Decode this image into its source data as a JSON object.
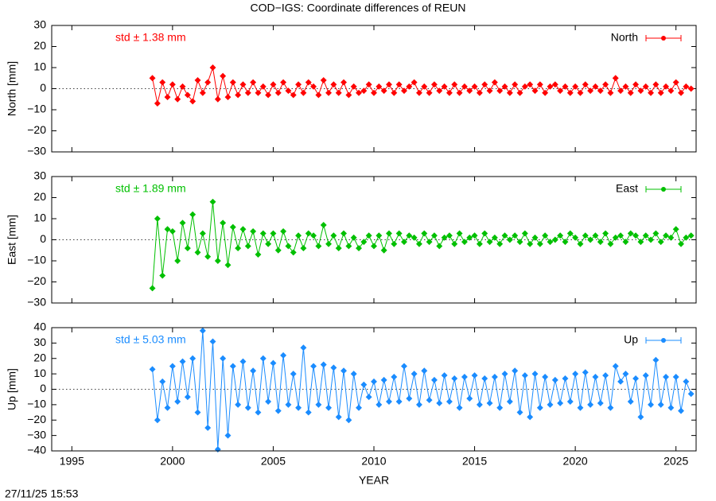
{
  "title": "COD−IGS: Coordinate differences of REUN",
  "timestamp": "27/11/25 15:53",
  "chart_data": [
    {
      "type": "line",
      "ylabel": "North [mm]",
      "annotation": "std ± 1.38 mm",
      "xlim": [
        1994,
        2026
      ],
      "xticks": [
        1995,
        2000,
        2005,
        2010,
        2015,
        2020,
        2025
      ],
      "ylim": [
        -30,
        30
      ],
      "yticks": [
        {
          "value": -30,
          "label": "−30"
        },
        {
          "value": -20,
          "label": "−20"
        },
        {
          "value": -10,
          "label": "−10"
        },
        0,
        10,
        20,
        30
      ],
      "x": [
        1999,
        1999.25,
        1999.5,
        1999.75,
        2000,
        2000.25,
        2000.5,
        2000.75,
        2001,
        2001.25,
        2001.5,
        2001.75,
        2002,
        2002.25,
        2002.5,
        2002.75,
        2003,
        2003.25,
        2003.5,
        2003.75,
        2004,
        2004.25,
        2004.5,
        2004.75,
        2005,
        2005.25,
        2005.5,
        2005.75,
        2006,
        2006.25,
        2006.5,
        2006.75,
        2007,
        2007.25,
        2007.5,
        2007.75,
        2008,
        2008.25,
        2008.5,
        2008.75,
        2009,
        2009.25,
        2009.5,
        2009.75,
        2010,
        2010.25,
        2010.5,
        2010.75,
        2011,
        2011.25,
        2011.5,
        2011.75,
        2012,
        2012.25,
        2012.5,
        2012.75,
        2013,
        2013.25,
        2013.5,
        2013.75,
        2014,
        2014.25,
        2014.5,
        2014.75,
        2015,
        2015.25,
        2015.5,
        2015.75,
        2016,
        2016.25,
        2016.5,
        2016.75,
        2017,
        2017.25,
        2017.5,
        2017.75,
        2018,
        2018.25,
        2018.5,
        2018.75,
        2019,
        2019.25,
        2019.5,
        2019.75,
        2020,
        2020.25,
        2020.5,
        2020.75,
        2021,
        2021.25,
        2021.5,
        2021.75,
        2022,
        2022.25,
        2022.5,
        2022.75,
        2023,
        2023.25,
        2023.5,
        2023.75,
        2024,
        2024.25,
        2024.5,
        2024.75,
        2025,
        2025.25,
        2025.5,
        2025.75
      ],
      "series": [
        {
          "name": "North",
          "color": "#ff0000",
          "values": [
            5,
            -7,
            3,
            -4,
            2,
            -5,
            1,
            -3,
            -6,
            4,
            -2,
            3,
            10,
            -5,
            6,
            -4,
            3,
            -3,
            2,
            -2,
            3,
            -2,
            1,
            -3,
            2,
            -2,
            3,
            -1,
            -3,
            2,
            -2,
            3,
            1,
            -3,
            4,
            -2,
            2,
            -2,
            3,
            -3,
            1,
            -2,
            -1,
            2,
            -2,
            1,
            -1,
            2,
            -2,
            2,
            -1,
            1,
            3,
            -2,
            1,
            -2,
            2,
            -1,
            1,
            -2,
            2,
            -2,
            1,
            -1,
            1,
            -2,
            2,
            -1,
            3,
            -1,
            1,
            -2,
            2,
            -2,
            1,
            2,
            -1,
            2,
            -2,
            1,
            2,
            -1,
            1,
            -2,
            1,
            -2,
            2,
            -1,
            1,
            -1,
            2,
            -2,
            5,
            -1,
            1,
            -2,
            2,
            -1,
            1,
            -2,
            2,
            -2,
            1,
            -1,
            3,
            -2,
            1,
            0
          ]
        }
      ]
    },
    {
      "type": "line",
      "ylabel": "East [mm]",
      "annotation": "std ± 1.89 mm",
      "xlim": [
        1994,
        2026
      ],
      "xticks": [
        1995,
        2000,
        2005,
        2010,
        2015,
        2020,
        2025
      ],
      "ylim": [
        -30,
        30
      ],
      "yticks": [
        {
          "value": -30,
          "label": "−30"
        },
        {
          "value": -20,
          "label": "−20"
        },
        {
          "value": -10,
          "label": "−10"
        },
        0,
        10,
        20,
        30
      ],
      "x": [
        1999,
        1999.25,
        1999.5,
        1999.75,
        2000,
        2000.25,
        2000.5,
        2000.75,
        2001,
        2001.25,
        2001.5,
        2001.75,
        2002,
        2002.25,
        2002.5,
        2002.75,
        2003,
        2003.25,
        2003.5,
        2003.75,
        2004,
        2004.25,
        2004.5,
        2004.75,
        2005,
        2005.25,
        2005.5,
        2005.75,
        2006,
        2006.25,
        2006.5,
        2006.75,
        2007,
        2007.25,
        2007.5,
        2007.75,
        2008,
        2008.25,
        2008.5,
        2008.75,
        2009,
        2009.25,
        2009.5,
        2009.75,
        2010,
        2010.25,
        2010.5,
        2010.75,
        2011,
        2011.25,
        2011.5,
        2011.75,
        2012,
        2012.25,
        2012.5,
        2012.75,
        2013,
        2013.25,
        2013.5,
        2013.75,
        2014,
        2014.25,
        2014.5,
        2014.75,
        2015,
        2015.25,
        2015.5,
        2015.75,
        2016,
        2016.25,
        2016.5,
        2016.75,
        2017,
        2017.25,
        2017.5,
        2017.75,
        2018,
        2018.25,
        2018.5,
        2018.75,
        2019,
        2019.25,
        2019.5,
        2019.75,
        2020,
        2020.25,
        2020.5,
        2020.75,
        2021,
        2021.25,
        2021.5,
        2021.75,
        2022,
        2022.25,
        2022.5,
        2022.75,
        2023,
        2023.25,
        2023.5,
        2023.75,
        2024,
        2024.25,
        2024.5,
        2024.75,
        2025,
        2025.25,
        2025.5,
        2025.75
      ],
      "series": [
        {
          "name": "East",
          "color": "#00c000",
          "values": [
            -23,
            10,
            -17,
            5,
            4,
            -10,
            8,
            -4,
            12,
            -6,
            3,
            -8,
            18,
            -10,
            8,
            -12,
            6,
            -4,
            5,
            -3,
            4,
            -7,
            3,
            -2,
            3,
            -5,
            4,
            -3,
            -6,
            2,
            -4,
            3,
            2,
            -3,
            7,
            -2,
            2,
            -4,
            3,
            -3,
            1,
            -4,
            -1,
            2,
            -3,
            2,
            -5,
            3,
            -2,
            3,
            -1,
            2,
            1,
            -2,
            3,
            -1,
            2,
            -3,
            1,
            2,
            -2,
            3,
            -1,
            1,
            2,
            -2,
            3,
            -1,
            1,
            -2,
            2,
            0,
            2,
            -1,
            3,
            -2,
            1,
            -2,
            2,
            -1,
            0,
            2,
            -1,
            3,
            1,
            -2,
            2,
            0,
            2,
            -1,
            3,
            -2,
            1,
            2,
            -1,
            3,
            2,
            -1,
            2,
            0,
            3,
            -1,
            2,
            1,
            5,
            -2,
            1,
            2
          ]
        }
      ]
    },
    {
      "type": "line",
      "ylabel": "Up [mm]",
      "annotation": "std ± 5.03 mm",
      "xlabel": "YEAR",
      "xlim": [
        1994,
        2026
      ],
      "xticks": [
        1995,
        2000,
        2005,
        2010,
        2015,
        2020,
        2025
      ],
      "ylim": [
        -40,
        40
      ],
      "yticks": [
        {
          "value": -40,
          "label": "−40"
        },
        {
          "value": -30,
          "label": "−30"
        },
        {
          "value": -20,
          "label": "−20"
        },
        {
          "value": -10,
          "label": "−10"
        },
        0,
        10,
        20,
        30,
        40
      ],
      "x": [
        1999,
        1999.25,
        1999.5,
        1999.75,
        2000,
        2000.25,
        2000.5,
        2000.75,
        2001,
        2001.25,
        2001.5,
        2001.75,
        2002,
        2002.25,
        2002.5,
        2002.75,
        2003,
        2003.25,
        2003.5,
        2003.75,
        2004,
        2004.25,
        2004.5,
        2004.75,
        2005,
        2005.25,
        2005.5,
        2005.75,
        2006,
        2006.25,
        2006.5,
        2006.75,
        2007,
        2007.25,
        2007.5,
        2007.75,
        2008,
        2008.25,
        2008.5,
        2008.75,
        2009,
        2009.25,
        2009.5,
        2009.75,
        2010,
        2010.25,
        2010.5,
        2010.75,
        2011,
        2011.25,
        2011.5,
        2011.75,
        2012,
        2012.25,
        2012.5,
        2012.75,
        2013,
        2013.25,
        2013.5,
        2013.75,
        2014,
        2014.25,
        2014.5,
        2014.75,
        2015,
        2015.25,
        2015.5,
        2015.75,
        2016,
        2016.25,
        2016.5,
        2016.75,
        2017,
        2017.25,
        2017.5,
        2017.75,
        2018,
        2018.25,
        2018.5,
        2018.75,
        2019,
        2019.25,
        2019.5,
        2019.75,
        2020,
        2020.25,
        2020.5,
        2020.75,
        2021,
        2021.25,
        2021.5,
        2021.75,
        2022,
        2022.25,
        2022.5,
        2022.75,
        2023,
        2023.25,
        2023.5,
        2023.75,
        2024,
        2024.25,
        2024.5,
        2024.75,
        2025,
        2025.25,
        2025.5,
        2025.75
      ],
      "series": [
        {
          "name": "Up",
          "color": "#1a8cff",
          "values": [
            13,
            -20,
            5,
            -12,
            15,
            -8,
            18,
            -5,
            20,
            -15,
            38,
            -25,
            31,
            -39,
            20,
            -30,
            15,
            -10,
            18,
            -12,
            12,
            -15,
            20,
            -8,
            17,
            -14,
            22,
            -10,
            10,
            -12,
            27,
            -15,
            15,
            -10,
            16,
            -12,
            14,
            -18,
            12,
            -20,
            10,
            -12,
            3,
            -5,
            5,
            -10,
            6,
            -8,
            8,
            -8,
            15,
            -6,
            10,
            -10,
            12,
            -7,
            6,
            -9,
            9,
            -8,
            7,
            -12,
            8,
            -6,
            9,
            -10,
            7,
            -9,
            8,
            -12,
            10,
            -8,
            12,
            -15,
            9,
            -18,
            10,
            -12,
            8,
            -10,
            6,
            -9,
            7,
            -8,
            10,
            -12,
            11,
            -10,
            8,
            -9,
            9,
            -12,
            15,
            5,
            10,
            -8,
            7,
            -18,
            9,
            -10,
            19,
            -10,
            8,
            -12,
            8,
            -14,
            5,
            -3
          ]
        }
      ]
    }
  ]
}
